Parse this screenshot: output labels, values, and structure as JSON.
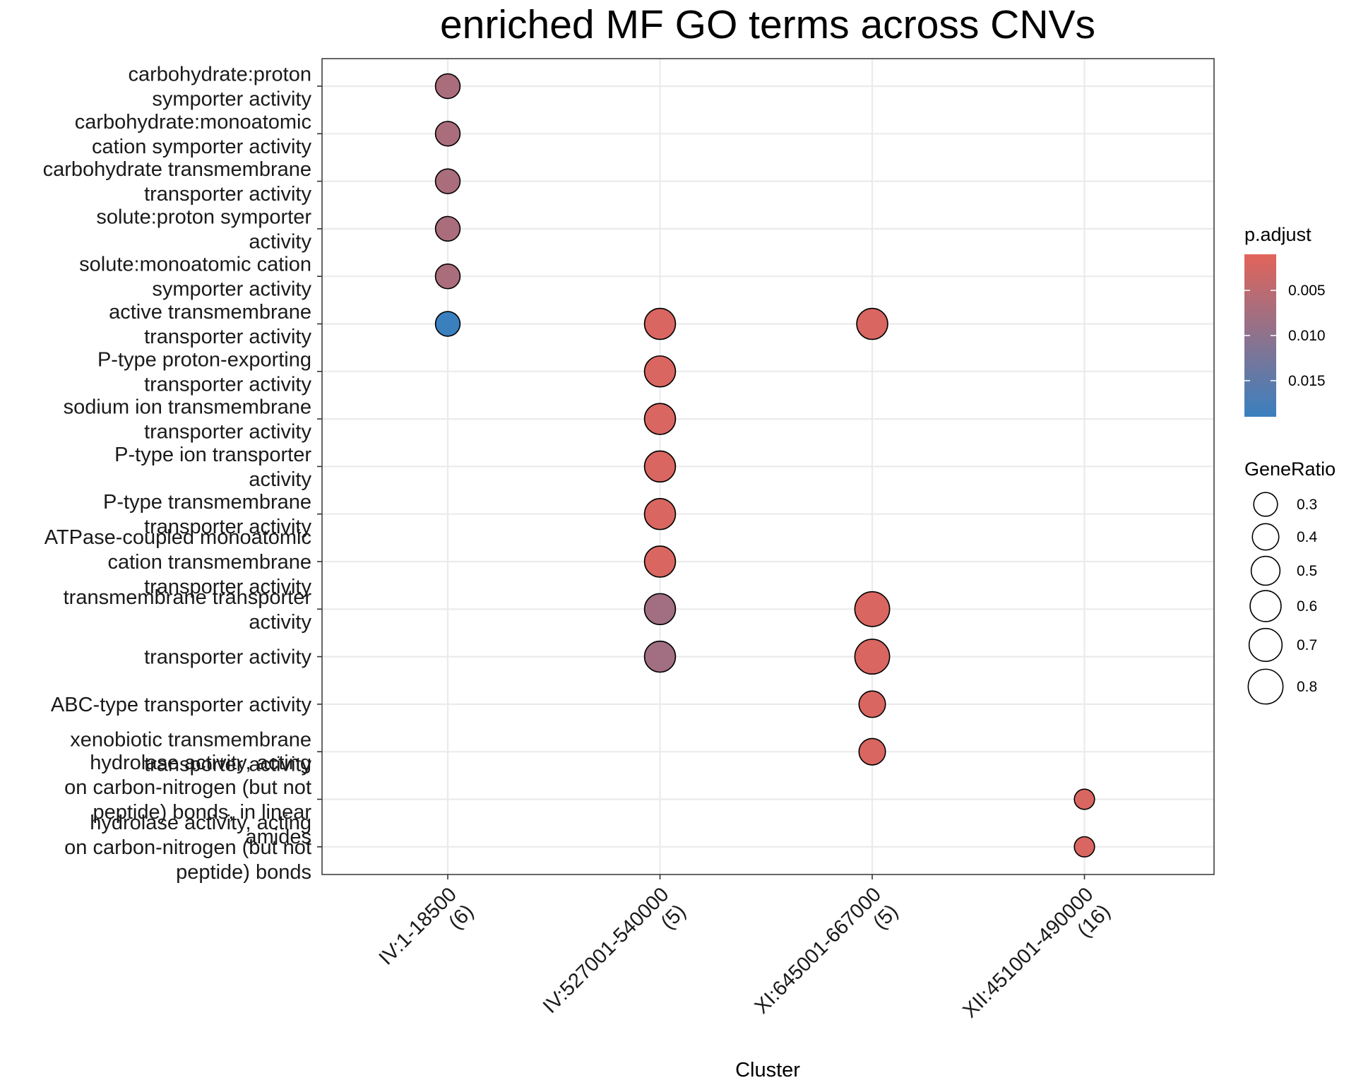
{
  "chart_data": {
    "type": "scatter",
    "title": "enriched MF GO terms across CNVs",
    "xlabel": "Cluster",
    "ylabel": "",
    "grid": true,
    "categories_x": [
      {
        "cluster": "IV:1-18500",
        "count": "(6)"
      },
      {
        "cluster": "IV:527001-540000",
        "count": "(5)"
      },
      {
        "cluster": "XI:645001-667000",
        "count": "(5)"
      },
      {
        "cluster": "XII:451001-490000",
        "count": "(16)"
      }
    ],
    "categories_y": [
      [
        "carbohydrate:proton",
        "symporter activity"
      ],
      [
        "carbohydrate:monoatomic",
        "cation symporter activity"
      ],
      [
        "carbohydrate transmembrane",
        "transporter activity"
      ],
      [
        "solute:proton symporter",
        "activity"
      ],
      [
        "solute:monoatomic cation",
        "symporter activity"
      ],
      [
        "active transmembrane",
        "transporter activity"
      ],
      [
        "P-type proton-exporting",
        "transporter activity"
      ],
      [
        "sodium ion transmembrane",
        "transporter activity"
      ],
      [
        "P-type ion transporter",
        "activity"
      ],
      [
        "P-type transmembrane",
        "transporter activity"
      ],
      [
        "ATPase-coupled monoatomic",
        "cation transmembrane",
        "transporter activity"
      ],
      [
        "transmembrane transporter",
        "activity"
      ],
      [
        "transporter activity"
      ],
      [
        "ABC-type transporter activity"
      ],
      [
        "xenobiotic transmembrane",
        "transporter activity"
      ],
      [
        "hydrolase activity, acting",
        "on carbon-nitrogen (but not",
        "peptide) bonds, in linear",
        "amides"
      ],
      [
        "hydrolase activity, acting",
        "on carbon-nitrogen (but not",
        "peptide) bonds"
      ]
    ],
    "points": [
      {
        "x": 0,
        "y": 0,
        "gene_ratio": 0.33,
        "p_adjust": 0.007
      },
      {
        "x": 0,
        "y": 1,
        "gene_ratio": 0.33,
        "p_adjust": 0.007
      },
      {
        "x": 0,
        "y": 2,
        "gene_ratio": 0.33,
        "p_adjust": 0.007
      },
      {
        "x": 0,
        "y": 3,
        "gene_ratio": 0.33,
        "p_adjust": 0.007
      },
      {
        "x": 0,
        "y": 4,
        "gene_ratio": 0.33,
        "p_adjust": 0.007
      },
      {
        "x": 0,
        "y": 5,
        "gene_ratio": 0.33,
        "p_adjust": 0.019
      },
      {
        "x": 1,
        "y": 5,
        "gene_ratio": 0.6,
        "p_adjust": 0.002
      },
      {
        "x": 1,
        "y": 6,
        "gene_ratio": 0.6,
        "p_adjust": 0.002
      },
      {
        "x": 1,
        "y": 7,
        "gene_ratio": 0.6,
        "p_adjust": 0.002
      },
      {
        "x": 1,
        "y": 8,
        "gene_ratio": 0.6,
        "p_adjust": 0.002
      },
      {
        "x": 1,
        "y": 9,
        "gene_ratio": 0.6,
        "p_adjust": 0.002
      },
      {
        "x": 1,
        "y": 10,
        "gene_ratio": 0.6,
        "p_adjust": 0.002
      },
      {
        "x": 1,
        "y": 11,
        "gene_ratio": 0.6,
        "p_adjust": 0.008
      },
      {
        "x": 1,
        "y": 12,
        "gene_ratio": 0.6,
        "p_adjust": 0.008
      },
      {
        "x": 2,
        "y": 5,
        "gene_ratio": 0.6,
        "p_adjust": 0.002
      },
      {
        "x": 2,
        "y": 11,
        "gene_ratio": 0.8,
        "p_adjust": 0.002
      },
      {
        "x": 2,
        "y": 12,
        "gene_ratio": 0.8,
        "p_adjust": 0.002
      },
      {
        "x": 2,
        "y": 13,
        "gene_ratio": 0.4,
        "p_adjust": 0.002
      },
      {
        "x": 2,
        "y": 14,
        "gene_ratio": 0.4,
        "p_adjust": 0.002
      },
      {
        "x": 3,
        "y": 15,
        "gene_ratio": 0.19,
        "p_adjust": 0.002
      },
      {
        "x": 3,
        "y": 16,
        "gene_ratio": 0.19,
        "p_adjust": 0.002
      }
    ],
    "color_legend": {
      "title": "p.adjust",
      "ticks": [
        0.005,
        0.01,
        0.015
      ],
      "tick_labels": [
        "0.005",
        "0.010",
        "0.015"
      ],
      "range": [
        0.001,
        0.019
      ],
      "low_color": "#E2645A",
      "high_color": "#3A80BF"
    },
    "size_legend": {
      "title": "GeneRatio",
      "values": [
        0.3,
        0.4,
        0.5,
        0.6,
        0.7,
        0.8
      ],
      "labels": [
        "0.3",
        "0.4",
        "0.5",
        "0.6",
        "0.7",
        "0.8"
      ]
    },
    "legend_position": "right"
  }
}
